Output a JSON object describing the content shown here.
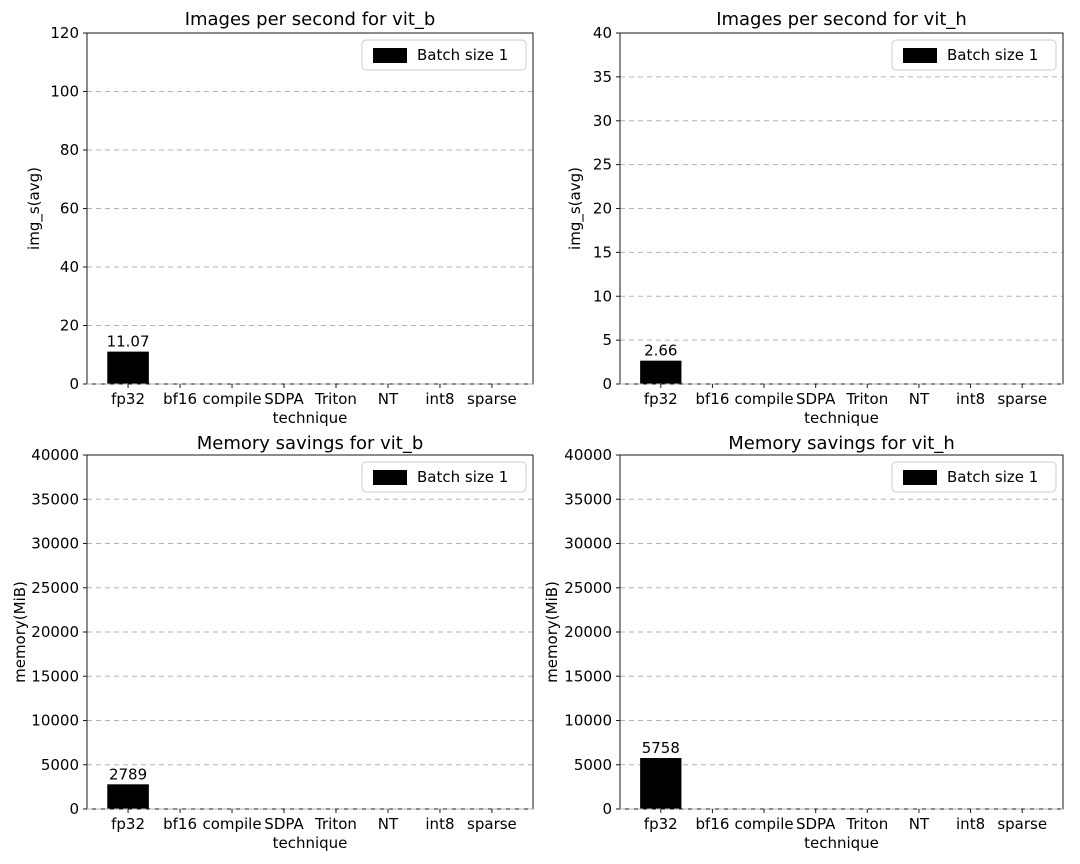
{
  "figure": {
    "background": "#ffffff"
  },
  "colors": {
    "bar": "#000000",
    "grid": "#b3b3b3",
    "spine": "#1a1a1a",
    "text": "#000000",
    "legend_border": "#cccccc",
    "legend_bg": "#ffffff"
  },
  "chart_data": [
    {
      "type": "bar",
      "title": "Images per second for vit_b",
      "xlabel": "technique",
      "ylabel": "img_s(avg)",
      "categories": [
        "fp32",
        "bf16",
        "compile",
        "SDPA",
        "Triton",
        "NT",
        "int8",
        "sparse"
      ],
      "series": [
        {
          "name": "Batch size 1",
          "values": [
            11.07,
            null,
            null,
            null,
            null,
            null,
            null,
            null
          ]
        }
      ],
      "bar_value_labels": [
        "11.07",
        "",
        "",
        "",
        "",
        "",
        "",
        ""
      ],
      "ylim": [
        0,
        120
      ],
      "yticks": [
        0,
        20,
        40,
        60,
        80,
        100,
        120
      ],
      "grid": "dashed-horizontal",
      "legend": {
        "label": "Batch size 1",
        "position": "upper right"
      }
    },
    {
      "type": "bar",
      "title": "Images per second for vit_h",
      "xlabel": "technique",
      "ylabel": "img_s(avg)",
      "categories": [
        "fp32",
        "bf16",
        "compile",
        "SDPA",
        "Triton",
        "NT",
        "int8",
        "sparse"
      ],
      "series": [
        {
          "name": "Batch size 1",
          "values": [
            2.66,
            null,
            null,
            null,
            null,
            null,
            null,
            null
          ]
        }
      ],
      "bar_value_labels": [
        "2.66",
        "",
        "",
        "",
        "",
        "",
        "",
        ""
      ],
      "ylim": [
        0,
        40
      ],
      "yticks": [
        0,
        5,
        10,
        15,
        20,
        25,
        30,
        35,
        40
      ],
      "grid": "dashed-horizontal",
      "legend": {
        "label": "Batch size 1",
        "position": "upper right"
      }
    },
    {
      "type": "bar",
      "title": "Memory savings for vit_b",
      "xlabel": "technique",
      "ylabel": "memory(MiB)",
      "categories": [
        "fp32",
        "bf16",
        "compile",
        "SDPA",
        "Triton",
        "NT",
        "int8",
        "sparse"
      ],
      "series": [
        {
          "name": "Batch size 1",
          "values": [
            2789,
            null,
            null,
            null,
            null,
            null,
            null,
            null
          ]
        }
      ],
      "bar_value_labels": [
        "2789",
        "",
        "",
        "",
        "",
        "",
        "",
        ""
      ],
      "ylim": [
        0,
        40000
      ],
      "yticks": [
        0,
        5000,
        10000,
        15000,
        20000,
        25000,
        30000,
        35000,
        40000
      ],
      "grid": "dashed-horizontal",
      "legend": {
        "label": "Batch size 1",
        "position": "upper right"
      }
    },
    {
      "type": "bar",
      "title": "Memory savings for vit_h",
      "xlabel": "technique",
      "ylabel": "memory(MiB)",
      "categories": [
        "fp32",
        "bf16",
        "compile",
        "SDPA",
        "Triton",
        "NT",
        "int8",
        "sparse"
      ],
      "series": [
        {
          "name": "Batch size 1",
          "values": [
            5758,
            null,
            null,
            null,
            null,
            null,
            null,
            null
          ]
        }
      ],
      "bar_value_labels": [
        "5758",
        "",
        "",
        "",
        "",
        "",
        "",
        ""
      ],
      "ylim": [
        0,
        40000
      ],
      "yticks": [
        0,
        5000,
        10000,
        15000,
        20000,
        25000,
        30000,
        35000,
        40000
      ],
      "grid": "dashed-horizontal",
      "legend": {
        "label": "Batch size 1",
        "position": "upper right"
      }
    }
  ]
}
